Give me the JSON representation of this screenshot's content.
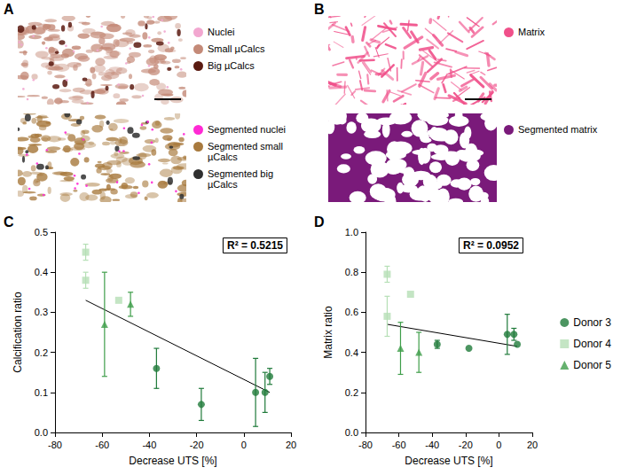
{
  "image_panels": [
    {
      "panel": "A",
      "images": [
        {
          "legend": [
            {
              "label": "Nuclei",
              "color": "#f2a7d0"
            },
            {
              "label": "Small µCalcs",
              "color": "#c48a78"
            },
            {
              "label": "Big µCalcs",
              "color": "#5a1a10"
            }
          ]
        },
        {
          "legend": [
            {
              "label": "Segmented nuclei",
              "color": "#ff2ad4"
            },
            {
              "label": "Segmented small µCalcs",
              "color": "#a87a3e"
            },
            {
              "label": "Segmented big µCalcs",
              "color": "#2f2f2f"
            }
          ]
        }
      ]
    },
    {
      "panel": "B",
      "images": [
        {
          "legend": [
            {
              "label": "Matrix",
              "color": "#f0508a"
            }
          ]
        },
        {
          "legend": [
            {
              "label": "Segmented matrix",
              "color": "#7a1a7a"
            }
          ]
        }
      ]
    }
  ],
  "chart_data": [
    {
      "panel": "C",
      "type": "scatter",
      "x_label": "Decrease UTS [%]",
      "y_label": "Calcification ratio",
      "annotation": "R² = 0.5215",
      "xlim": [
        -80,
        20
      ],
      "xticks": [
        -80,
        -60,
        -40,
        -20,
        0,
        20
      ],
      "ylim": [
        0,
        0.5
      ],
      "yticks": [
        {
          "value": 0,
          "label": "0.0"
        },
        0.1,
        0.2,
        0.3,
        0.4,
        0.5
      ],
      "grid": false,
      "trendline": {
        "x": [
          -67,
          11
        ],
        "y": [
          0.33,
          0.1
        ]
      },
      "series": [
        {
          "name": "Donor 3",
          "color": "#1f7a3a",
          "marker": "circle",
          "x": [
            -37,
            -18,
            5,
            9,
            11
          ],
          "values": [
            0.16,
            0.07,
            0.1,
            0.1,
            0.14
          ],
          "errors": [
            0.05,
            0.04,
            0.085,
            0.05,
            0.02
          ]
        },
        {
          "name": "Donor 4",
          "color": "#b5dfb5",
          "marker": "square",
          "x": [
            -67,
            -67,
            -53
          ],
          "values": [
            0.45,
            0.38,
            0.33
          ],
          "errors": [
            0.02,
            0.02,
            null
          ]
        },
        {
          "name": "Donor 5",
          "color": "#3f9e4a",
          "marker": "triangle",
          "x": [
            -59,
            -48
          ],
          "values": [
            0.27,
            0.32
          ],
          "errors": [
            0.13,
            0.03
          ]
        }
      ]
    },
    {
      "panel": "D",
      "type": "scatter",
      "x_label": "Decrease UTS [%]",
      "y_label": "Matrix ratio",
      "annotation": "R² = 0.0952",
      "xlim": [
        -80,
        20
      ],
      "xticks": [
        -80,
        -60,
        -40,
        -20,
        0,
        20
      ],
      "ylim": [
        0,
        1
      ],
      "yticks": [
        {
          "value": 0,
          "label": "0.0"
        },
        0.2,
        0.4,
        0.6,
        0.8,
        {
          "value": 1,
          "label": "1.0"
        }
      ],
      "grid": false,
      "legend": "right",
      "trendline": {
        "x": [
          -67,
          11
        ],
        "y": [
          0.54,
          0.43
        ]
      },
      "series": [
        {
          "name": "Donor 3",
          "color": "#1f7a3a",
          "marker": "circle",
          "x": [
            -37,
            -18,
            5,
            9,
            11
          ],
          "values": [
            0.44,
            0.42,
            0.49,
            0.49,
            0.44
          ],
          "errors": [
            0.02,
            null,
            0.1,
            0.03,
            null
          ]
        },
        {
          "name": "Donor 4",
          "color": "#b5dfb5",
          "marker": "square",
          "x": [
            -67,
            -67,
            -53
          ],
          "values": [
            0.79,
            0.58,
            0.69
          ],
          "errors": [
            0.04,
            0.1,
            null
          ]
        },
        {
          "name": "Donor 5",
          "color": "#3f9e4a",
          "marker": "triangle",
          "x": [
            -59,
            -48
          ],
          "values": [
            0.42,
            0.4
          ],
          "errors": [
            0.13,
            0.1
          ]
        }
      ]
    }
  ]
}
